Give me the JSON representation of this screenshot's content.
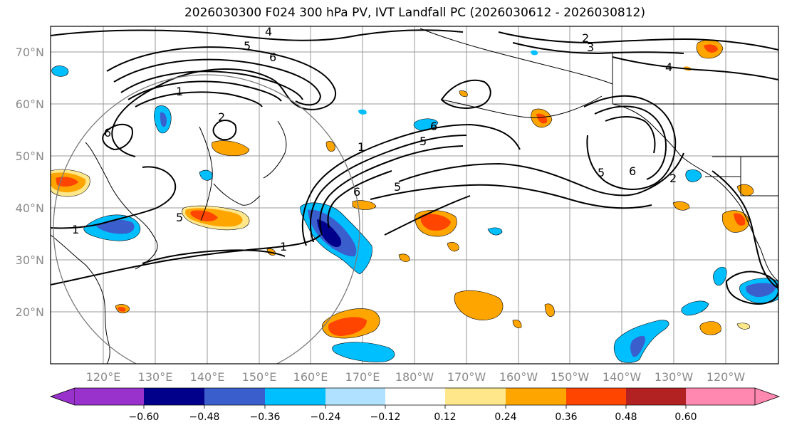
{
  "title": "2026030300 F024 300 hPa PV, IVT Landfall PC (2026030612 - 2026030812)",
  "lat_labels": [
    "70°N",
    "60°N",
    "50°N",
    "40°N",
    "30°N",
    "20°N"
  ],
  "lon_labels": [
    "120°E",
    "130°E",
    "140°E",
    "150°E",
    "160°E",
    "170°E",
    "180°W",
    "170°W",
    "160°W",
    "150°W",
    "140°W",
    "130°W",
    "120°W"
  ],
  "colorbar": {
    "ticks": [
      "−0.60",
      "−0.48",
      "−0.36",
      "−0.24",
      "−0.12",
      "0.12",
      "0.24",
      "0.36",
      "0.48",
      "0.60"
    ],
    "colors": [
      "#9932cc",
      "#00008b",
      "#3a5fcd",
      "#00bfff",
      "#b0e2ff",
      "#ffffff",
      "#ffe78a",
      "#ffa500",
      "#ff4500",
      "#b22222",
      "#ff88b0"
    ]
  },
  "contour_labels": {
    "c1": "4",
    "c2": "5",
    "c3": "6",
    "c4": "1",
    "c5": "2",
    "c6": "6",
    "c7": "5",
    "c8": "1",
    "c9": "5",
    "c10": "1",
    "c11": "1",
    "c12": "6",
    "c13": "5",
    "c14": "6",
    "c15": "5",
    "c16": "6",
    "c17": "2",
    "c18": "3",
    "c19": "4",
    "c20": "2"
  }
}
